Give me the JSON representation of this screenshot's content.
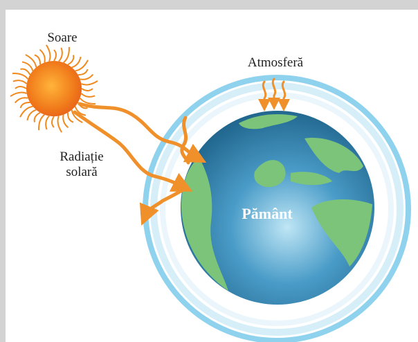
{
  "labels": {
    "sun": "Soare",
    "atmosphere": "Atmosferă",
    "radiation": [
      "Radiație",
      "solară"
    ],
    "earth": "Pământ"
  }
}
